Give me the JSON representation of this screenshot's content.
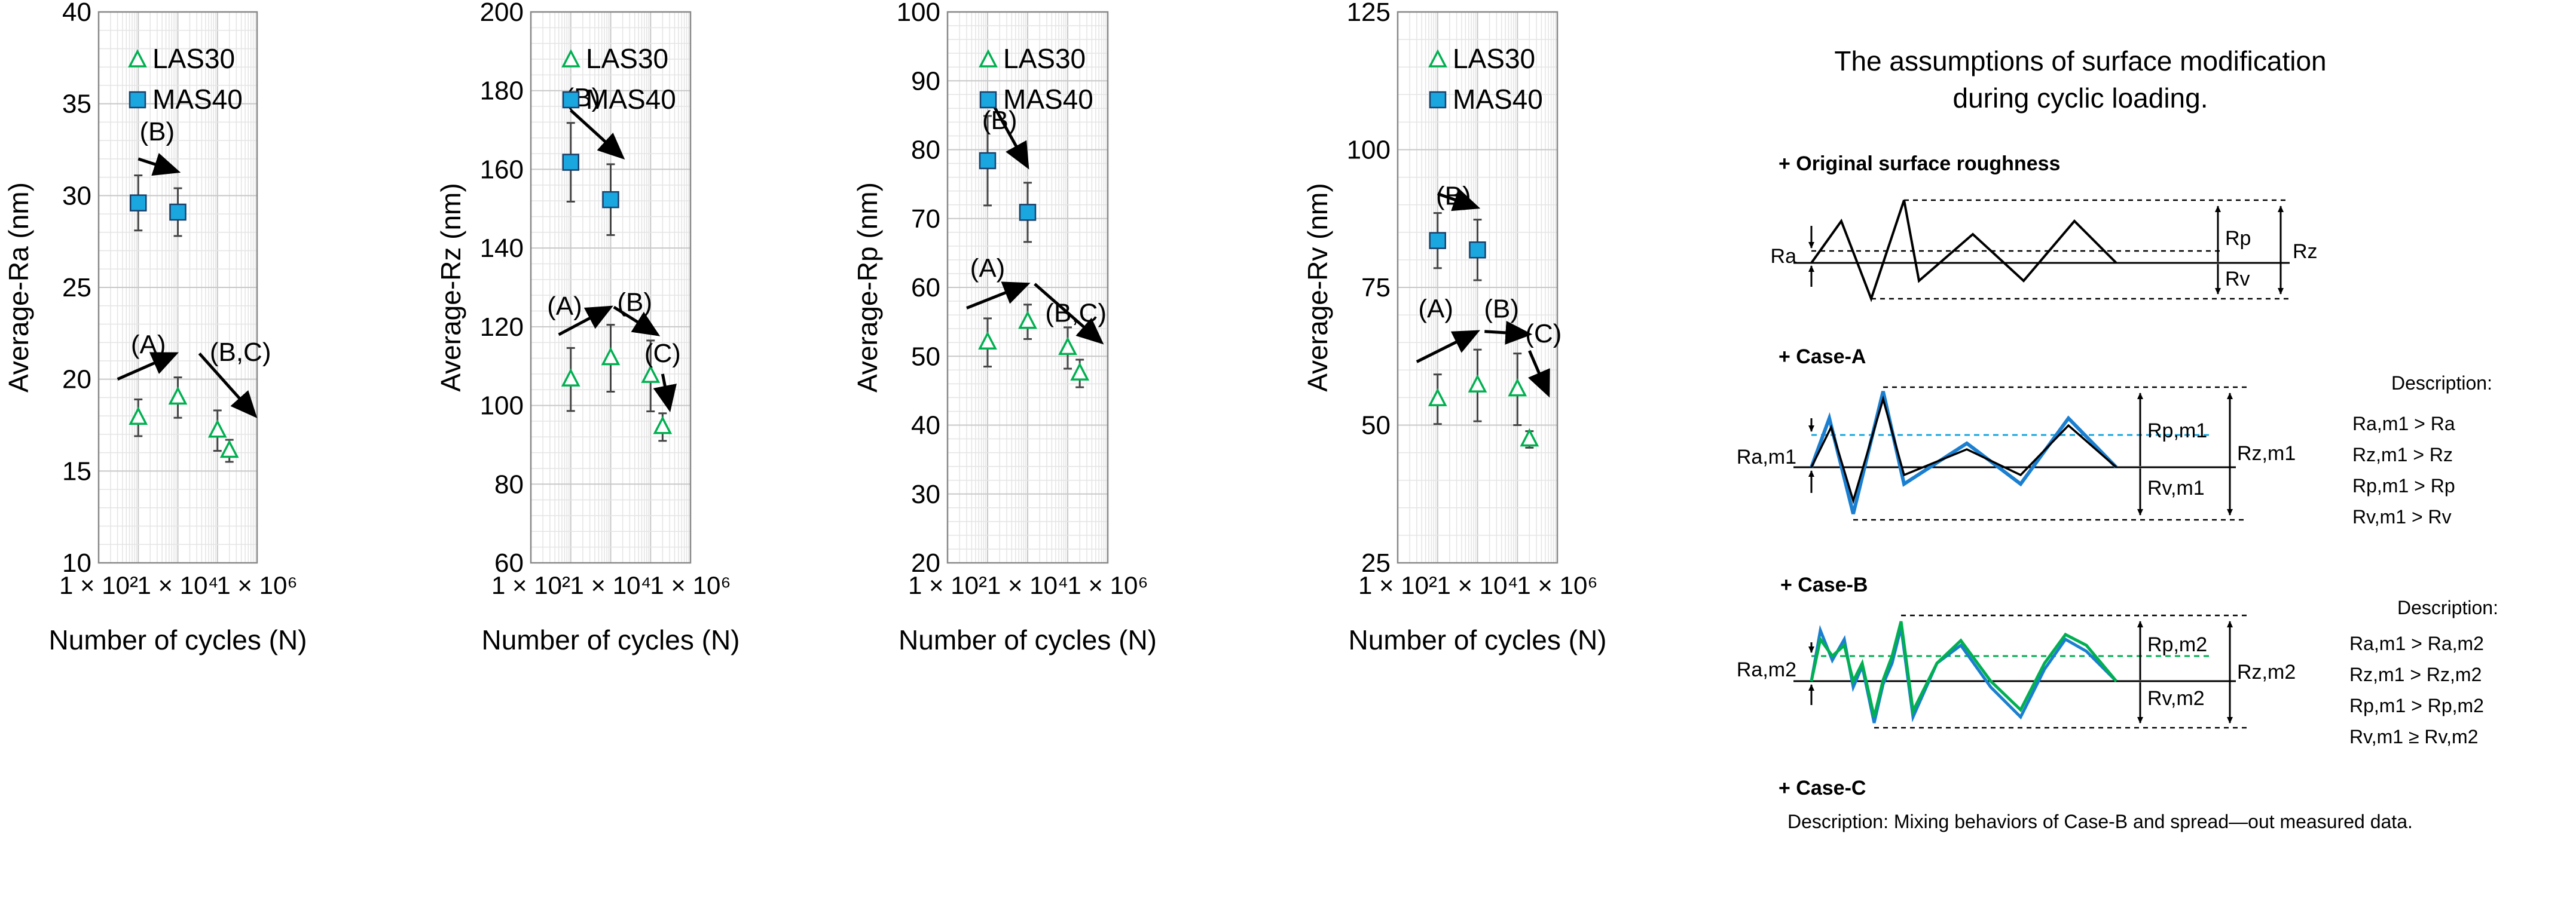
{
  "chart_data": [
    {
      "type": "scatter",
      "xlabel": "Number of cycles (N)",
      "ylabel": "Average-Ra (nm)",
      "x_scale": "log",
      "xlim": [
        100,
        1000000
      ],
      "ylim": [
        10,
        40
      ],
      "yticks": [
        10,
        15,
        20,
        25,
        30,
        35,
        40
      ],
      "xticks": [
        {
          "value": 100,
          "label": "1 × 10²"
        },
        {
          "value": 10000,
          "label": "1 × 10⁴"
        },
        {
          "value": 1000000,
          "label": "1 × 10⁶"
        }
      ],
      "grid": true,
      "legend_position": "top-right",
      "series": [
        {
          "name": "LAS30",
          "marker": "triangle",
          "color": "#00b050",
          "points": [
            {
              "x": 1000,
              "y": 17.9,
              "err": 1.0
            },
            {
              "x": 10000,
              "y": 19.0,
              "err": 1.1
            },
            {
              "x": 100000,
              "y": 17.2,
              "err": 1.1
            },
            {
              "x": 200000,
              "y": 16.1,
              "err": 0.6
            }
          ]
        },
        {
          "name": "MAS40",
          "marker": "square",
          "color": "#1aa7e0",
          "points": [
            {
              "x": 1000,
              "y": 29.6,
              "err": 1.5
            },
            {
              "x": 10000,
              "y": 29.1,
              "err": 1.3
            }
          ]
        }
      ],
      "annotations": [
        {
          "text": "(A)",
          "x": 1800,
          "y": 21.4,
          "arrow": [
            [
              300,
              20.0
            ],
            [
              9000,
              21.4
            ]
          ]
        },
        {
          "text": "(B,C)",
          "x": 380000,
          "y": 21.0,
          "arrow": [
            [
              35000,
              21.4
            ],
            [
              900000,
              18.0
            ]
          ]
        },
        {
          "text": "(B)",
          "x": 3000,
          "y": 33.0,
          "arrow": [
            [
              1000,
              32.0
            ],
            [
              10000,
              31.3
            ]
          ]
        }
      ]
    },
    {
      "type": "scatter",
      "xlabel": "Number of cycles (N)",
      "ylabel": "Average-Rz (nm)",
      "x_scale": "log",
      "xlim": [
        100,
        1000000
      ],
      "ylim": [
        60,
        200
      ],
      "yticks": [
        60,
        80,
        100,
        120,
        140,
        160,
        180,
        200
      ],
      "xticks": [
        {
          "value": 100,
          "label": "1 × 10²"
        },
        {
          "value": 10000,
          "label": "1 × 10⁴"
        },
        {
          "value": 1000000,
          "label": "1 × 10⁶"
        }
      ],
      "grid": true,
      "legend_position": "top-right",
      "series": [
        {
          "name": "LAS30",
          "marker": "triangle",
          "color": "#00b050",
          "points": [
            {
              "x": 1000,
              "y": 106.6,
              "err": 8.0
            },
            {
              "x": 10000,
              "y": 112.0,
              "err": 8.5
            },
            {
              "x": 100000,
              "y": 107.5,
              "err": 9.0
            },
            {
              "x": 200000,
              "y": 94.5,
              "err": 3.5
            }
          ]
        },
        {
          "name": "MAS40",
          "marker": "square",
          "color": "#1aa7e0",
          "points": [
            {
              "x": 1000,
              "y": 161.8,
              "err": 10.0
            },
            {
              "x": 10000,
              "y": 152.3,
              "err": 9.0
            }
          ]
        }
      ],
      "annotations": [
        {
          "text": "(A)",
          "x": 700,
          "y": 123.0,
          "arrow": [
            [
              500,
              118.0
            ],
            [
              10000,
              125.0
            ]
          ]
        },
        {
          "text": "(B)",
          "x": 40000,
          "y": 124.0,
          "arrow": [
            [
              12000,
              125.0
            ],
            [
              150000,
              118.0
            ]
          ]
        },
        {
          "text": "(C)",
          "x": 200000,
          "y": 111.0,
          "arrow": [
            [
              200000,
              108.0
            ],
            [
              300000,
              99.0
            ]
          ]
        },
        {
          "text": "(B)",
          "x": 2000,
          "y": 176.0,
          "arrow": [
            [
              1000,
              175.0
            ],
            [
              20000,
              163.0
            ]
          ]
        }
      ]
    },
    {
      "type": "scatter",
      "xlabel": "Number of cycles (N)",
      "ylabel": "Average-Rp (nm)",
      "x_scale": "log",
      "xlim": [
        100,
        1000000
      ],
      "ylim": [
        20,
        100
      ],
      "yticks": [
        20,
        30,
        40,
        50,
        60,
        70,
        80,
        90,
        100
      ],
      "xticks": [
        {
          "value": 100,
          "label": "1 × 10²"
        },
        {
          "value": 10000,
          "label": "1 × 10⁴"
        },
        {
          "value": 1000000,
          "label": "1 × 10⁶"
        }
      ],
      "grid": true,
      "legend_position": "top-right",
      "series": [
        {
          "name": "LAS30",
          "marker": "triangle",
          "color": "#00b050",
          "points": [
            {
              "x": 1000,
              "y": 52.0,
              "err": 3.5
            },
            {
              "x": 10000,
              "y": 55.0,
              "err": 2.5
            },
            {
              "x": 100000,
              "y": 51.2,
              "err": 3.0
            },
            {
              "x": 200000,
              "y": 47.5,
              "err": 2.0
            }
          ]
        },
        {
          "name": "MAS40",
          "marker": "square",
          "color": "#1aa7e0",
          "points": [
            {
              "x": 1000,
              "y": 78.4,
              "err": 6.5
            },
            {
              "x": 10000,
              "y": 70.9,
              "err": 4.3
            }
          ]
        }
      ],
      "annotations": [
        {
          "text": "(A)",
          "x": 1000,
          "y": 61.5,
          "arrow": [
            [
              300,
              57.0
            ],
            [
              10000,
              60.5
            ]
          ]
        },
        {
          "text": "(B,C)",
          "x": 160000,
          "y": 55.0,
          "arrow": [
            [
              15000,
              60.5
            ],
            [
              700000,
              52.0
            ]
          ]
        },
        {
          "text": "(B)",
          "x": 2000,
          "y": 83.0,
          "arrow": [
            [
              1000,
              88.0
            ],
            [
              10000,
              77.5
            ]
          ]
        }
      ]
    },
    {
      "type": "scatter",
      "xlabel": "Number of cycles (N)",
      "ylabel": "Average-Rv (nm)",
      "x_scale": "log",
      "xlim": [
        100,
        1000000
      ],
      "ylim": [
        25,
        125
      ],
      "yticks": [
        25,
        50,
        75,
        100,
        125
      ],
      "xticks": [
        {
          "value": 100,
          "label": "1 × 10²"
        },
        {
          "value": 10000,
          "label": "1 × 10⁴"
        },
        {
          "value": 1000000,
          "label": "1 × 10⁶"
        }
      ],
      "grid": true,
      "legend_position": "top-right",
      "series": [
        {
          "name": "LAS30",
          "marker": "triangle",
          "color": "#00b050",
          "points": [
            {
              "x": 1000,
              "y": 54.7,
              "err": 4.5
            },
            {
              "x": 10000,
              "y": 57.2,
              "err": 6.5
            },
            {
              "x": 100000,
              "y": 56.5,
              "err": 6.5
            },
            {
              "x": 200000,
              "y": 47.4,
              "err": 1.5
            }
          ]
        },
        {
          "name": "MAS40",
          "marker": "square",
          "color": "#1aa7e0",
          "points": [
            {
              "x": 1000,
              "y": 83.5,
              "err": 5.0
            },
            {
              "x": 10000,
              "y": 81.8,
              "err": 5.5
            }
          ]
        }
      ],
      "annotations": [
        {
          "text": "(A)",
          "x": 900,
          "y": 69.5,
          "arrow": [
            [
              300,
              61.5
            ],
            [
              10000,
              67.0
            ]
          ]
        },
        {
          "text": "(B)",
          "x": 40000,
          "y": 69.5,
          "arrow": [
            [
              15000,
              67.0
            ],
            [
              200000,
              66.5
            ]
          ]
        },
        {
          "text": "(C)",
          "x": 450000,
          "y": 65.0,
          "arrow": [
            [
              200000,
              63.5
            ],
            [
              600000,
              55.5
            ]
          ]
        },
        {
          "text": "(B)",
          "x": 2500,
          "y": 90.0,
          "arrow": [
            [
              1000,
              92.0
            ],
            [
              10000,
              89.5
            ]
          ]
        }
      ]
    }
  ],
  "diagram": {
    "title_line1": "The assumptions of surface modification",
    "title_line2": "during cyclic loading.",
    "original": {
      "heading": "+ Original surface roughness",
      "ra": "Ra",
      "rp": "Rp",
      "rv": "Rv",
      "rz": "Rz"
    },
    "case_a": {
      "heading": "+ Case-A",
      "ra": "Ra,m1",
      "rp": "Rp,m1",
      "rv": "Rv,m1",
      "rz": "Rz,m1",
      "desc_title": "Description:",
      "desc": [
        "Ra,m1 > Ra",
        "Rz,m1 > Rz",
        "Rp,m1 > Rp",
        "Rv,m1 > Rv"
      ]
    },
    "case_b": {
      "heading": "+ Case-B",
      "ra": "Ra,m2",
      "rp": "Rp,m2",
      "rv": "Rv,m2",
      "rz": "Rz,m2",
      "desc_title": "Description:",
      "desc": [
        "Ra,m1 > Ra,m2",
        "Rz,m1 > Rz,m2",
        "Rp,m1 > Rp,m2",
        "Rv,m1 ≥ Rv,m2"
      ]
    },
    "case_c": {
      "heading": "+ Case-C",
      "desc": "Description: Mixing behaviors of Case-B and spread—out measured data."
    },
    "colors": {
      "line": "#000000",
      "blue": "#1a7fd0",
      "green": "#00b050",
      "dash_blue": "#1aa7e0",
      "dash_green": "#00b050"
    }
  }
}
